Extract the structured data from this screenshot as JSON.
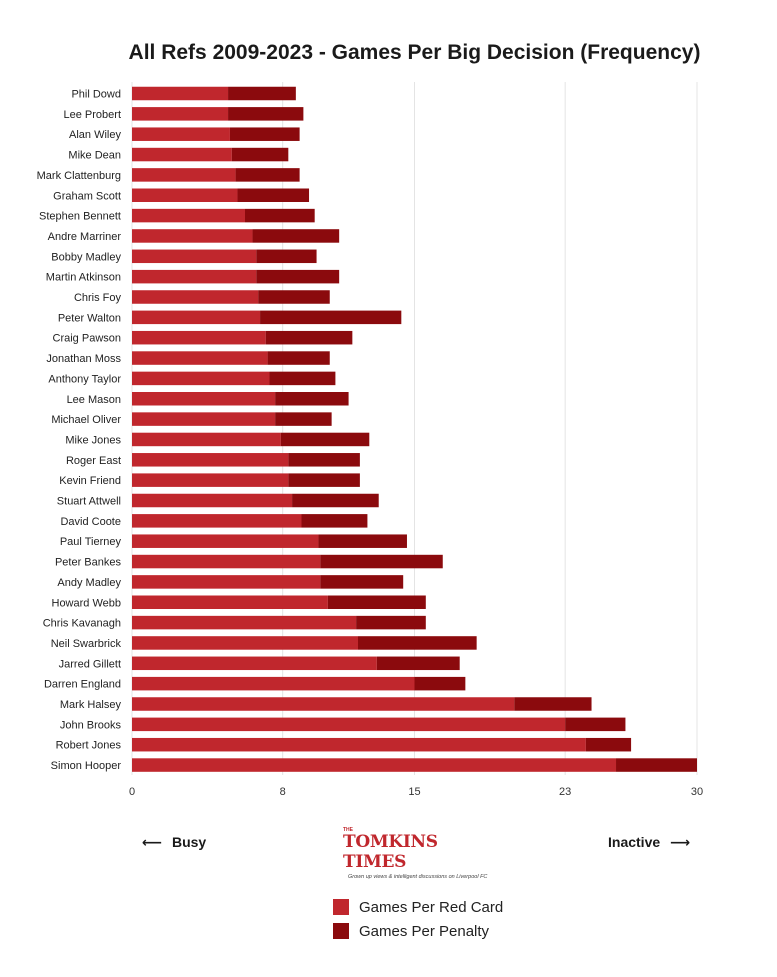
{
  "chart_data": {
    "type": "bar",
    "orientation": "horizontal",
    "stacked": true,
    "title": "All Refs 2009-2023 - Games Per Big Decision (Frequency)",
    "xlabel": "",
    "ylabel": "",
    "xlim": [
      0,
      30
    ],
    "x_ticks": [
      "0",
      "8",
      "15",
      "23",
      "30"
    ],
    "grid": "vertical",
    "legend_position": "bottom",
    "categories": [
      "Phil Dowd",
      "Lee Probert",
      "Alan Wiley",
      "Mike Dean",
      "Mark Clattenburg",
      "Graham Scott",
      "Stephen Bennett",
      "Andre Marriner",
      "Bobby Madley",
      "Martin Atkinson",
      "Chris Foy",
      "Peter Walton",
      "Craig Pawson",
      "Jonathan Moss",
      "Anthony Taylor",
      "Lee Mason",
      "Michael Oliver",
      "Mike Jones",
      "Roger East",
      "Kevin Friend",
      "Stuart Attwell",
      "David Coote",
      "Paul Tierney",
      "Peter Bankes",
      "Andy Madley",
      "Howard Webb",
      "Chris Kavanagh",
      "Neil Swarbrick",
      "Jarred Gillett",
      "Darren England",
      "Mark Halsey",
      "John Brooks",
      "Robert Jones",
      "Simon Hooper"
    ],
    "series": [
      {
        "name": "Games Per Red Card",
        "color": "#c0272d",
        "values": [
          5.1,
          5.1,
          5.2,
          5.3,
          5.5,
          5.6,
          6.0,
          6.4,
          6.6,
          6.6,
          6.7,
          6.8,
          7.1,
          7.2,
          7.3,
          7.6,
          7.6,
          7.9,
          8.3,
          8.3,
          8.5,
          9.0,
          9.9,
          10.0,
          10.0,
          10.4,
          11.9,
          12.0,
          13.0,
          15.0,
          20.3,
          23.0,
          24.1,
          25.7
        ]
      },
      {
        "name": "Games Per Penalty",
        "color": "#8b0a0d",
        "values": [
          3.6,
          4.0,
          3.7,
          3.0,
          3.4,
          3.8,
          3.7,
          4.6,
          3.2,
          4.4,
          3.8,
          7.5,
          4.6,
          3.3,
          3.5,
          3.9,
          3.0,
          4.7,
          3.8,
          3.8,
          4.6,
          3.5,
          4.7,
          6.5,
          4.4,
          5.2,
          3.7,
          6.3,
          4.4,
          2.7,
          4.1,
          3.2,
          2.4,
          4.3
        ]
      }
    ]
  },
  "axis_hints": {
    "left": "Busy",
    "right": "Inactive"
  },
  "logo": {
    "small": "THE",
    "name": "TOMKINS TIMES",
    "tagline": "Grown up views & intelligent discussions on Liverpool FC"
  },
  "legend": {
    "items": [
      {
        "label": "Games Per Red Card",
        "color": "#c0272d"
      },
      {
        "label": "Games Per Penalty",
        "color": "#8b0a0d"
      }
    ]
  }
}
